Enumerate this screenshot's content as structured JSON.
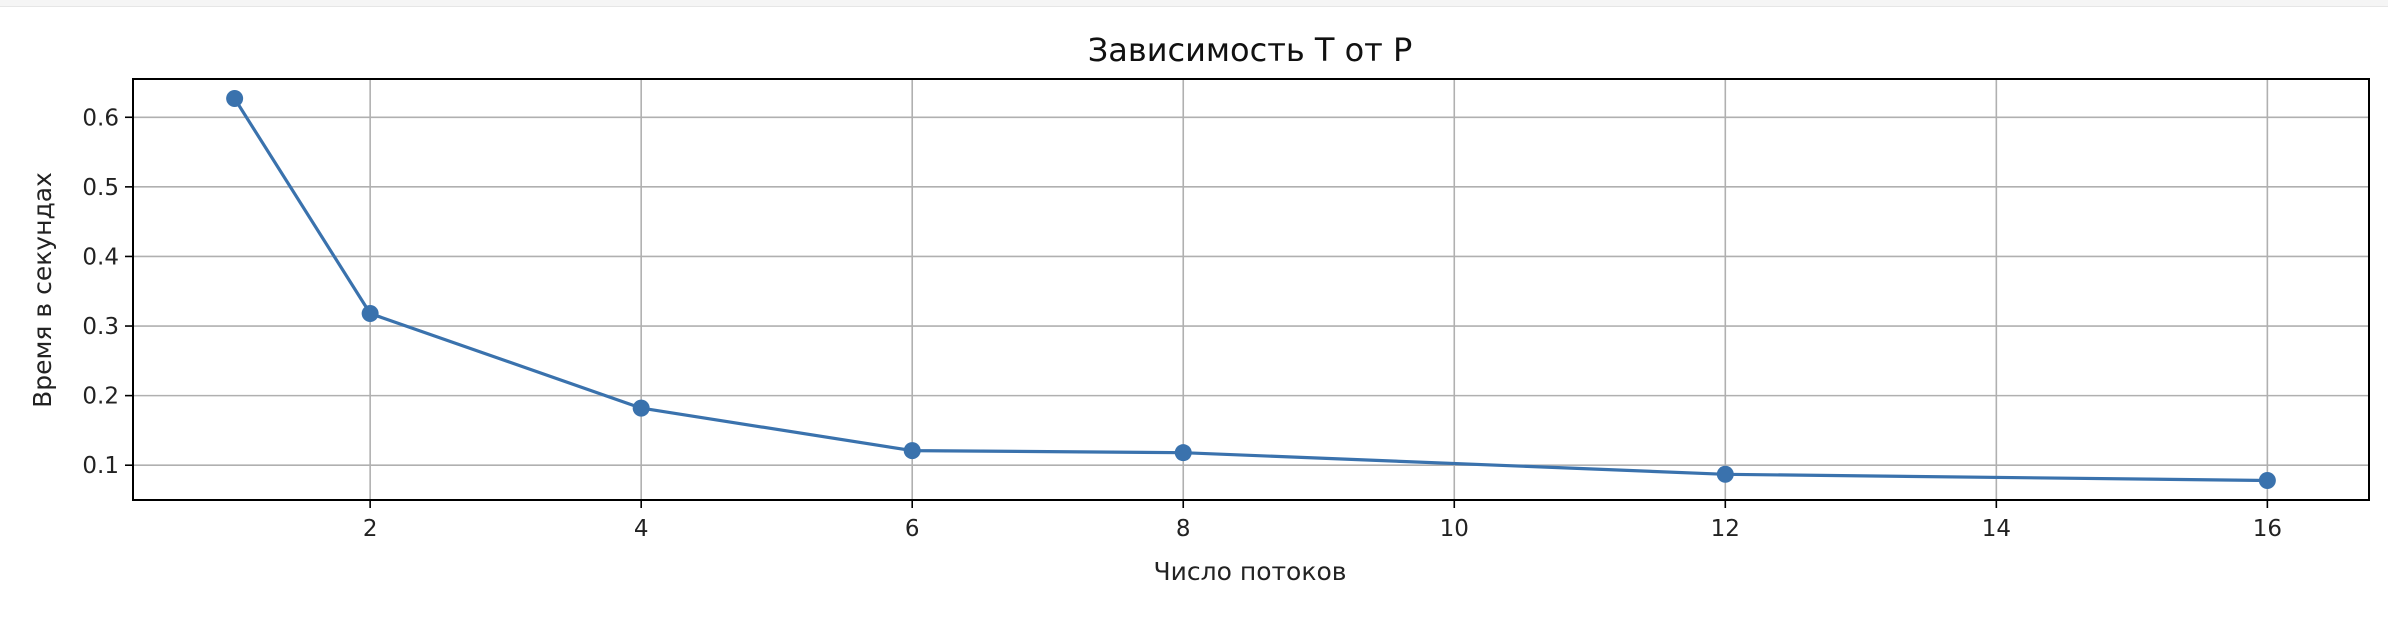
{
  "chart_data": {
    "type": "line",
    "title": "Зависимость T от P",
    "xlabel": "Число потоков",
    "ylabel": "Время в секундах",
    "x": [
      1,
      2,
      4,
      6,
      8,
      12,
      16
    ],
    "series": [
      {
        "values": [
          0.627,
          0.318,
          0.182,
          0.121,
          0.118,
          0.087,
          0.078
        ]
      }
    ],
    "xlim": [
      0.25,
      16.75
    ],
    "ylim": [
      0.05,
      0.655
    ],
    "xticks": [
      2,
      4,
      6,
      8,
      10,
      12,
      14,
      16
    ],
    "yticks": [
      0.1,
      0.2,
      0.3,
      0.4,
      0.5,
      0.6
    ],
    "xtick_labels": [
      "2",
      "4",
      "6",
      "8",
      "10",
      "12",
      "14",
      "16"
    ],
    "ytick_labels": [
      "0.1",
      "0.2",
      "0.3",
      "0.4",
      "0.5",
      "0.6"
    ],
    "grid": true,
    "marker": "circle",
    "line_color": "#3a72ad",
    "grid_color": "#b0b0b0",
    "frame_color": "#000000"
  }
}
